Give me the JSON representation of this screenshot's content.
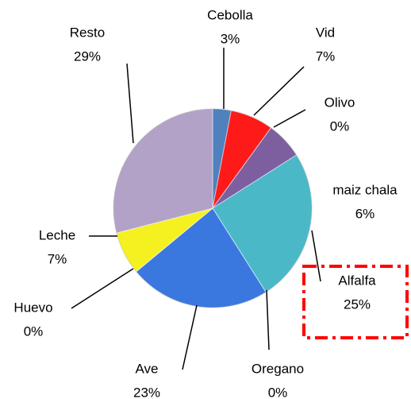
{
  "chart_data": {
    "type": "pie",
    "categories": [
      "Cebolla",
      "Vid",
      "Olivo",
      "maiz chala",
      "Alfalfa",
      "Oregano",
      "Ave",
      "Huevo",
      "Leche",
      "Resto"
    ],
    "values": [
      3,
      7,
      0,
      6,
      25,
      0,
      23,
      0,
      7,
      29
    ],
    "value_labels": [
      "3%",
      "7%",
      "0%",
      "6%",
      "25%",
      "0%",
      "23%",
      "0%",
      "7%",
      "29%"
    ],
    "colors": [
      "#4f81bd",
      "#ff1a1a",
      "#8064a2",
      "#7d5fa0",
      "#4bb8c8",
      "#3a6fd8",
      "#3a78e0",
      "#e8e800",
      "#f5f020",
      "#b3a2c7"
    ]
  }
}
